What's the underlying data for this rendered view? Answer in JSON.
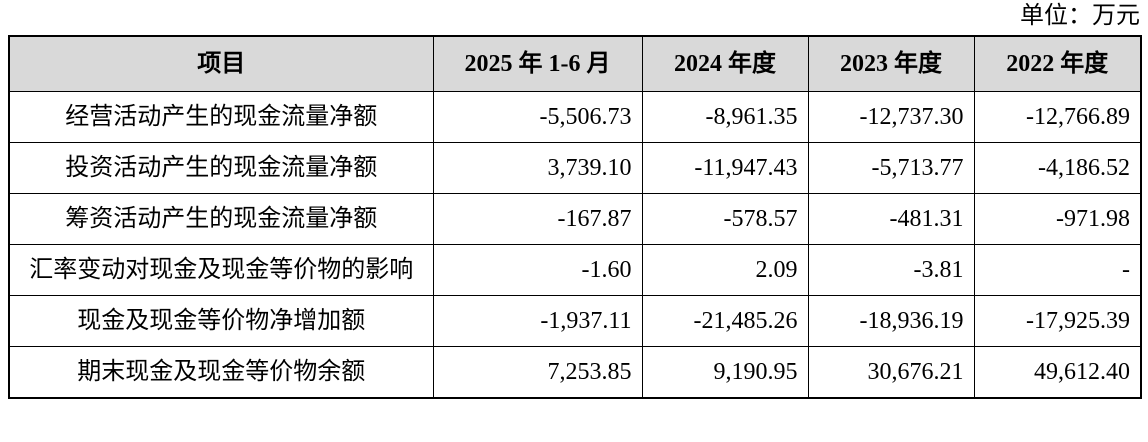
{
  "unit": "单位：万元",
  "table": {
    "header": [
      "项目",
      "2025 年 1-6 月",
      "2024 年度",
      "2023 年度",
      "2022 年度"
    ],
    "rows": [
      [
        "经营活动产生的现金流量净额",
        "-5,506.73",
        "-8,961.35",
        "-12,737.30",
        "-12,766.89"
      ],
      [
        "投资活动产生的现金流量净额",
        "3,739.10",
        "-11,947.43",
        "-5,713.77",
        "-4,186.52"
      ],
      [
        "筹资活动产生的现金流量净额",
        "-167.87",
        "-578.57",
        "-481.31",
        "-971.98"
      ],
      [
        "汇率变动对现金及现金等价物的影响",
        "-1.60",
        "2.09",
        "-3.81",
        "-"
      ],
      [
        "现金及现金等价物净增加额",
        "-1,937.11",
        "-21,485.26",
        "-18,936.19",
        "-17,925.39"
      ],
      [
        "期末现金及现金等价物余额",
        "7,253.85",
        "9,190.95",
        "30,676.21",
        "49,612.40"
      ]
    ]
  }
}
